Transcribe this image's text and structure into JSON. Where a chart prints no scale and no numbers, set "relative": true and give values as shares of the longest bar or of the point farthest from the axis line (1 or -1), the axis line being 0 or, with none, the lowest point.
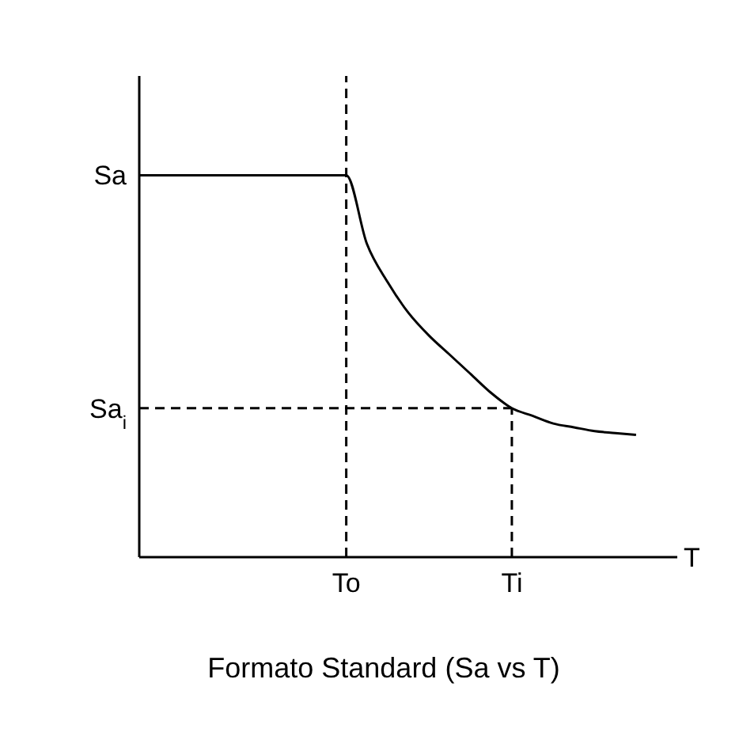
{
  "chart_data": {
    "type": "line",
    "title": "Formato Standard (Sa vs T)",
    "xlabel": "T",
    "relative": true,
    "categories": [
      null,
      null,
      null,
      null,
      null,
      null,
      null,
      null,
      null,
      null,
      "To",
      null,
      null,
      null,
      null,
      null,
      null,
      null,
      "Ti",
      null,
      null,
      null,
      null,
      null,
      null
    ],
    "values": [
      1,
      1,
      1,
      1,
      1,
      1,
      1,
      1,
      1,
      1,
      1,
      0.82,
      0.72,
      0.64,
      0.58,
      0.53,
      0.48,
      0.43,
      0.39,
      0.37,
      0.35,
      0.34,
      0.33,
      0.325,
      0.32
    ],
    "color": "#000000",
    "annotations": [
      "Sa"
    ],
    "ref_lines": [
      {
        "axis": "x",
        "value": "To",
        "line_style": "dashed",
        "color": "#000000"
      },
      {
        "axis": "x",
        "value": "Ti",
        "line_style": "dashed",
        "color": "#000000"
      },
      {
        "axis": "y",
        "value": 0.39,
        "label": "Sa$_{i}$",
        "line_style": "dashed",
        "color": "#000000"
      }
    ],
    "marker": "none",
    "line_style": "solid",
    "grid": false,
    "legend": false
  }
}
